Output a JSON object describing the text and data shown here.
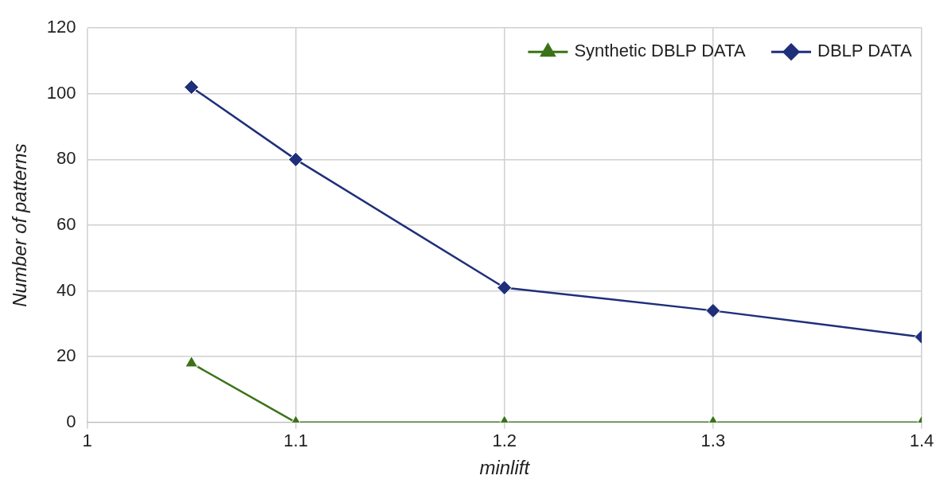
{
  "chart_data": {
    "type": "line",
    "xlabel": "minlift",
    "ylabel": "Number of patterns",
    "xlim": [
      1,
      1.4
    ],
    "xticks": [
      1,
      1.1,
      1.2,
      1.3,
      1.4
    ],
    "ylim": [
      0,
      120
    ],
    "yticks": [
      0,
      20,
      40,
      60,
      80,
      100,
      120
    ],
    "grid": true,
    "legend": "top right",
    "line_style": "solid",
    "series": [
      {
        "name": "Synthetic DBLP DATA",
        "color": "#3a7317",
        "marker": "triangle",
        "x": [
          1.05,
          1.1,
          1.2,
          1.3,
          1.4
        ],
        "values": [
          18,
          0,
          0,
          0,
          0
        ]
      },
      {
        "name": "DBLP DATA",
        "color": "#1f2f7a",
        "marker": "diamond",
        "x": [
          1.05,
          1.1,
          1.2,
          1.3,
          1.4
        ],
        "values": [
          102,
          80,
          41,
          34,
          26
        ]
      }
    ]
  }
}
